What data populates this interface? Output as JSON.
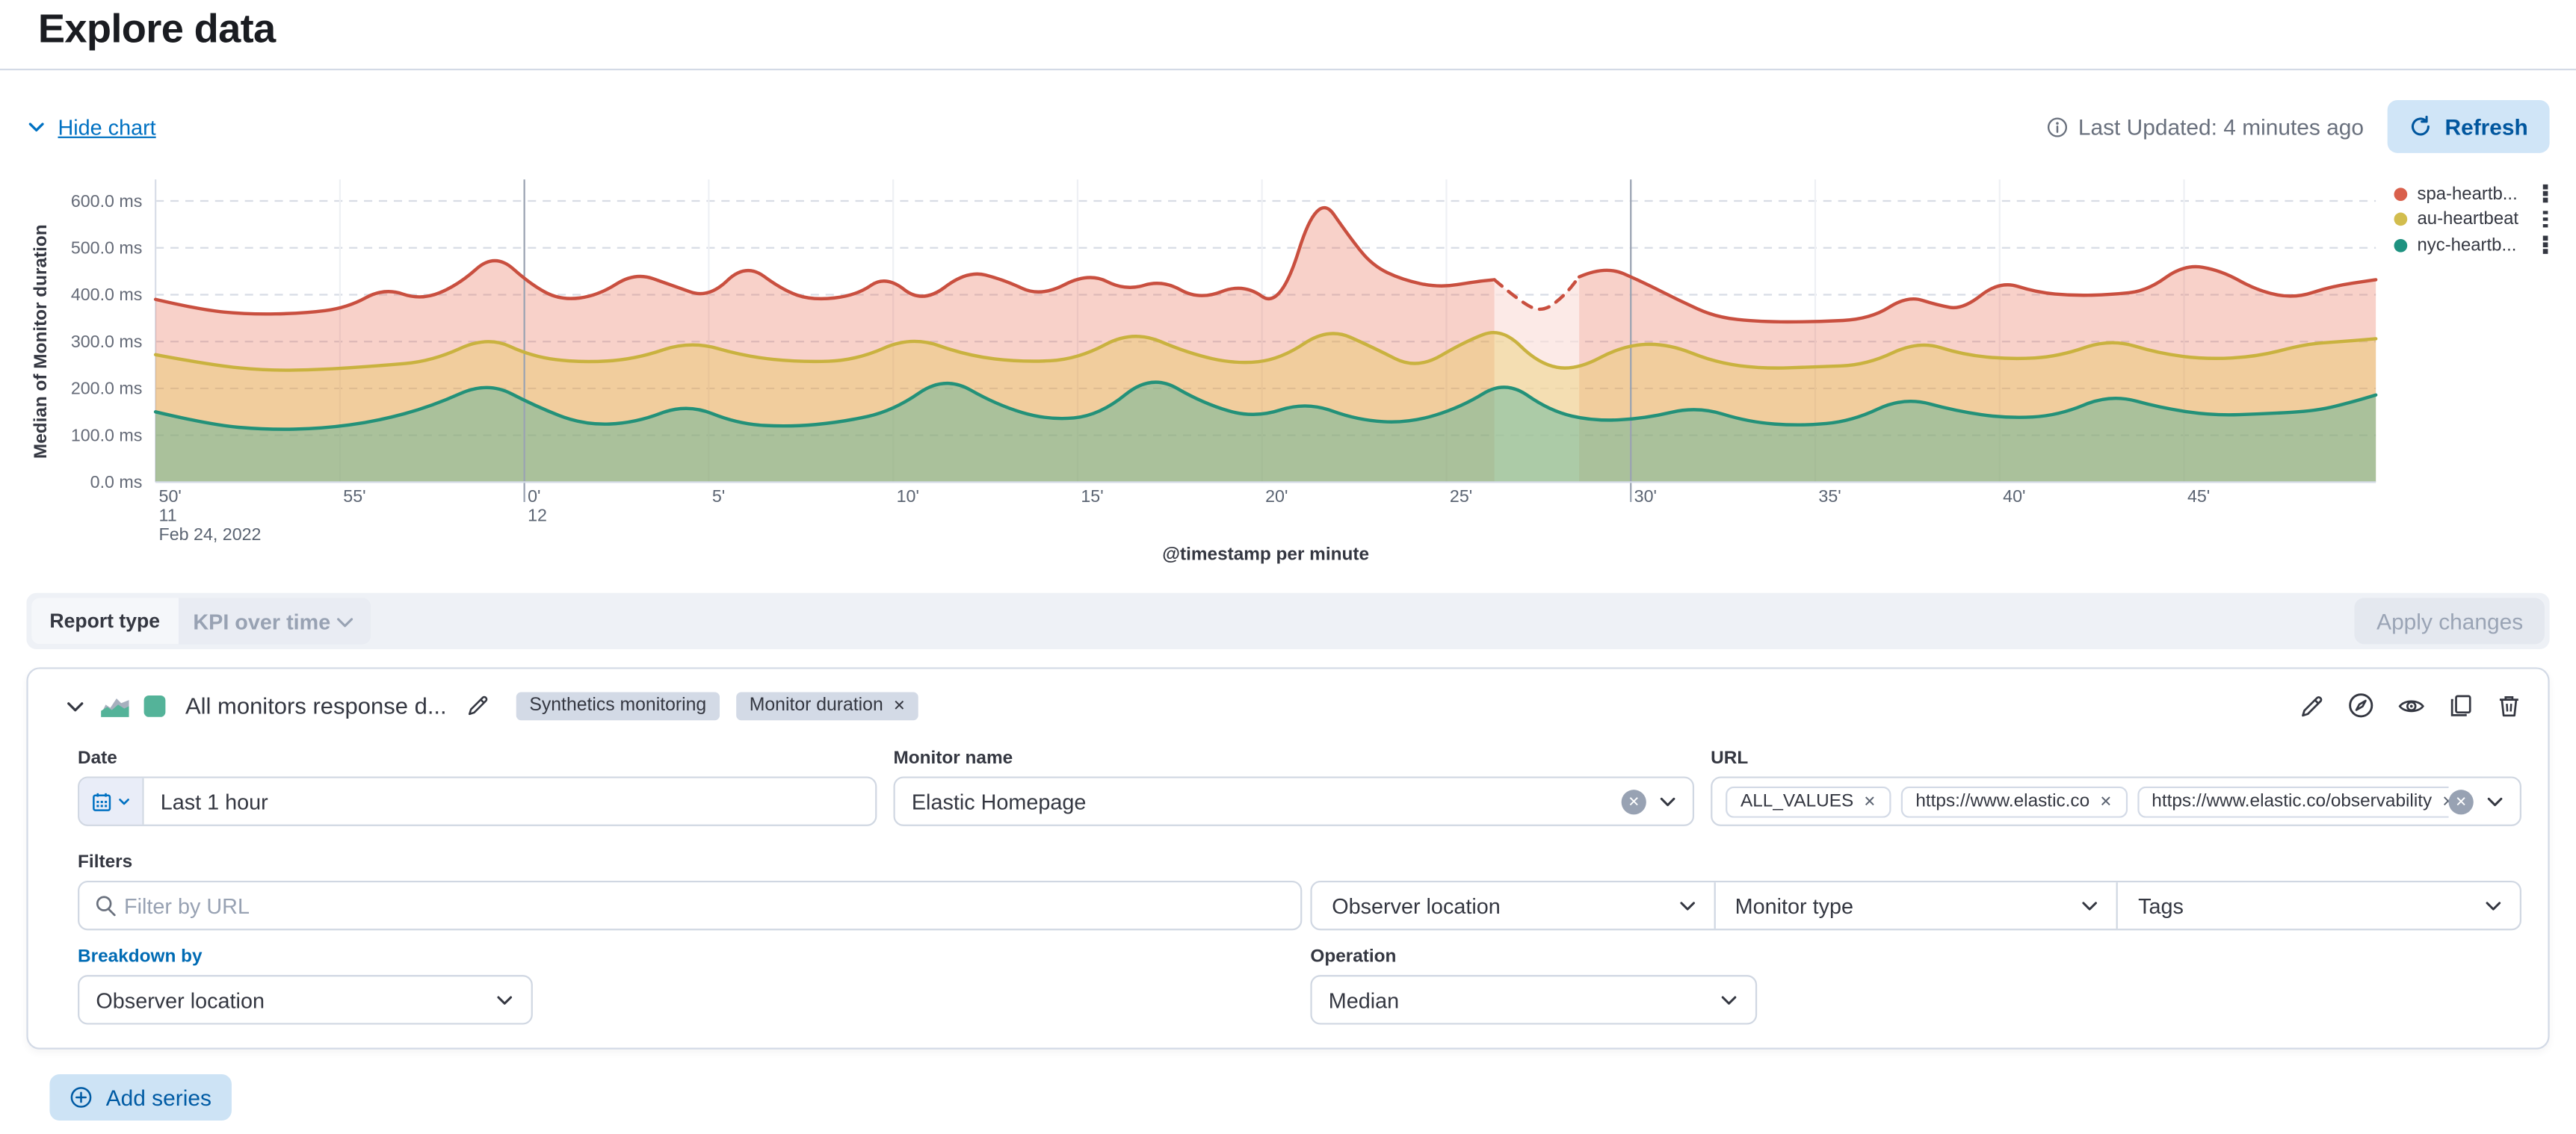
{
  "page": {
    "title": "Explore data"
  },
  "colors": {
    "accent_blue": "#0071C2",
    "link_blue": "#006BB4"
  },
  "toolbar": {
    "hide_chart": "Hide chart",
    "last_updated": "Last Updated: 4 minutes ago",
    "refresh": "Refresh"
  },
  "report_type": {
    "label": "Report type",
    "value": "KPI over time"
  },
  "apply_changes": "Apply changes",
  "series_panel": {
    "title": "All monitors response d...",
    "swatch_color": "#54B399",
    "badges": [
      {
        "label": "Synthetics monitoring",
        "removable": false
      },
      {
        "label": "Monitor duration",
        "removable": true
      }
    ],
    "fields": {
      "date": {
        "label": "Date",
        "value": "Last 1 hour"
      },
      "monitor_name": {
        "label": "Monitor name",
        "value": "Elastic Homepage"
      },
      "url": {
        "label": "URL",
        "values": [
          "ALL_VALUES",
          "https://www.elastic.co",
          "https://www.elastic.co/observability"
        ]
      }
    },
    "filters": {
      "label": "Filters",
      "placeholder": "Filter by URL",
      "dropdowns": [
        "Observer location",
        "Monitor type",
        "Tags"
      ]
    },
    "breakdown": {
      "label": "Breakdown by",
      "value": "Observer location"
    },
    "operation": {
      "label": "Operation",
      "value": "Median"
    }
  },
  "add_series": "Add series",
  "chart_data": {
    "type": "area",
    "title": "",
    "xlabel": "@timestamp per minute",
    "ylabel": "Median of Monitor duration",
    "ylim": [
      0,
      600
    ],
    "x_domain": [
      0,
      60.2
    ],
    "grid": "horizontal-dashed",
    "legend_position": "right",
    "y_ticks": [
      {
        "v": 0,
        "label": "0.0 ms"
      },
      {
        "v": 100,
        "label": "100.0 ms"
      },
      {
        "v": 200,
        "label": "200.0 ms"
      },
      {
        "v": 300,
        "label": "300.0 ms"
      },
      {
        "v": 400,
        "label": "400.0 ms"
      },
      {
        "v": 500,
        "label": "500.0 ms"
      },
      {
        "v": 600,
        "label": "600.0 ms"
      }
    ],
    "x_ticks": [
      {
        "t": 0,
        "label": "50'",
        "sub": "11",
        "sub2": "Feb 24, 2022"
      },
      {
        "t": 5,
        "label": "55'"
      },
      {
        "t": 10,
        "label": "0'",
        "sub": "12",
        "dark": true
      },
      {
        "t": 15,
        "label": "5'"
      },
      {
        "t": 20,
        "label": "10'"
      },
      {
        "t": 25,
        "label": "15'"
      },
      {
        "t": 30,
        "label": "20'"
      },
      {
        "t": 35,
        "label": "25'"
      },
      {
        "t": 40,
        "label": "30'",
        "dark": true
      },
      {
        "t": 45,
        "label": "35'"
      },
      {
        "t": 50,
        "label": "40'"
      },
      {
        "t": 55,
        "label": "45'"
      }
    ],
    "legend": [
      {
        "label": "spa-heartb...",
        "color": "#D9604C"
      },
      {
        "label": "au-heartbeat",
        "color": "#D2BD4E"
      },
      {
        "label": "nyc-heartb...",
        "color": "#1E9280"
      }
    ],
    "series": [
      {
        "name": "spa-heartbeat",
        "stroke": "#C94F3F",
        "fill": "#E7664C",
        "fill_opacity": 0.3,
        "gap_range": [
          36.3,
          38.6
        ],
        "points": [
          [
            0,
            390
          ],
          [
            1.2,
            368
          ],
          [
            2.5,
            358
          ],
          [
            4,
            360
          ],
          [
            5.2,
            372
          ],
          [
            6.2,
            415
          ],
          [
            7.2,
            388
          ],
          [
            8.2,
            420
          ],
          [
            9.2,
            490
          ],
          [
            10.2,
            420
          ],
          [
            11,
            388
          ],
          [
            12,
            398
          ],
          [
            13,
            448
          ],
          [
            14,
            420
          ],
          [
            15,
            392
          ],
          [
            16,
            468
          ],
          [
            17,
            410
          ],
          [
            17.8,
            388
          ],
          [
            19,
            398
          ],
          [
            19.8,
            442
          ],
          [
            20.8,
            380
          ],
          [
            22,
            452
          ],
          [
            23,
            432
          ],
          [
            24,
            395
          ],
          [
            25.3,
            448
          ],
          [
            26.3,
            408
          ],
          [
            27.3,
            432
          ],
          [
            28.3,
            388
          ],
          [
            29.5,
            425
          ],
          [
            30.5,
            368
          ],
          [
            31.5,
            622
          ],
          [
            32.4,
            520
          ],
          [
            33,
            462
          ],
          [
            33.8,
            432
          ],
          [
            34.8,
            415
          ],
          [
            35.8,
            428
          ],
          [
            36.3,
            432
          ],
          [
            37,
            385
          ],
          [
            37.6,
            362
          ],
          [
            38.2,
            398
          ],
          [
            38.6,
            438
          ],
          [
            39.3,
            462
          ],
          [
            40.3,
            428
          ],
          [
            41.3,
            388
          ],
          [
            42.3,
            352
          ],
          [
            43.5,
            342
          ],
          [
            45,
            342
          ],
          [
            46.5,
            348
          ],
          [
            47.5,
            398
          ],
          [
            48.3,
            378
          ],
          [
            49,
            368
          ],
          [
            50,
            430
          ],
          [
            51,
            405
          ],
          [
            52,
            398
          ],
          [
            53,
            400
          ],
          [
            54,
            408
          ],
          [
            55,
            465
          ],
          [
            56,
            452
          ],
          [
            57,
            408
          ],
          [
            58,
            392
          ],
          [
            59,
            418
          ],
          [
            60.2,
            432
          ]
        ]
      },
      {
        "name": "au-heartbeat",
        "stroke": "#C9B23F",
        "fill": "#E3C441",
        "fill_opacity": 0.32,
        "points": [
          [
            0,
            272
          ],
          [
            1.5,
            250
          ],
          [
            3,
            238
          ],
          [
            4.5,
            240
          ],
          [
            6,
            248
          ],
          [
            7.5,
            258
          ],
          [
            9,
            312
          ],
          [
            10.2,
            268
          ],
          [
            11.5,
            255
          ],
          [
            13,
            262
          ],
          [
            14.5,
            302
          ],
          [
            16,
            268
          ],
          [
            17.5,
            256
          ],
          [
            19,
            260
          ],
          [
            20.5,
            312
          ],
          [
            22,
            270
          ],
          [
            23.5,
            256
          ],
          [
            25,
            262
          ],
          [
            26.5,
            325
          ],
          [
            28,
            275
          ],
          [
            29.3,
            252
          ],
          [
            30.5,
            262
          ],
          [
            31.8,
            330
          ],
          [
            33,
            288
          ],
          [
            34.2,
            240
          ],
          [
            35.5,
            300
          ],
          [
            36.5,
            330
          ],
          [
            37.5,
            252
          ],
          [
            38.5,
            238
          ],
          [
            39.8,
            292
          ],
          [
            41,
            296
          ],
          [
            42.3,
            255
          ],
          [
            43.6,
            242
          ],
          [
            45,
            246
          ],
          [
            46.4,
            250
          ],
          [
            47.8,
            302
          ],
          [
            49,
            272
          ],
          [
            50.3,
            262
          ],
          [
            51.6,
            268
          ],
          [
            53,
            306
          ],
          [
            54.3,
            275
          ],
          [
            55.6,
            262
          ],
          [
            57,
            268
          ],
          [
            58.3,
            295
          ],
          [
            59.3,
            300
          ],
          [
            60.2,
            306
          ]
        ]
      },
      {
        "name": "nyc-heartbeat",
        "stroke": "#239179",
        "fill": "#54B399",
        "fill_opacity": 0.45,
        "points": [
          [
            0,
            150
          ],
          [
            1.5,
            122
          ],
          [
            3,
            112
          ],
          [
            4.5,
            114
          ],
          [
            6,
            130
          ],
          [
            7.5,
            162
          ],
          [
            9,
            215
          ],
          [
            10.3,
            162
          ],
          [
            11.6,
            122
          ],
          [
            13,
            126
          ],
          [
            14.4,
            168
          ],
          [
            15.8,
            124
          ],
          [
            17.2,
            118
          ],
          [
            18.6,
            128
          ],
          [
            20,
            152
          ],
          [
            21.4,
            228
          ],
          [
            22.8,
            165
          ],
          [
            24.2,
            132
          ],
          [
            25.6,
            142
          ],
          [
            27,
            232
          ],
          [
            28.4,
            168
          ],
          [
            29.8,
            136
          ],
          [
            31.2,
            172
          ],
          [
            32.6,
            132
          ],
          [
            34,
            126
          ],
          [
            35.4,
            160
          ],
          [
            36.6,
            218
          ],
          [
            37.8,
            152
          ],
          [
            39,
            130
          ],
          [
            40.4,
            136
          ],
          [
            41.8,
            162
          ],
          [
            43.2,
            128
          ],
          [
            44.6,
            120
          ],
          [
            46,
            130
          ],
          [
            47.4,
            182
          ],
          [
            48.8,
            152
          ],
          [
            50.2,
            136
          ],
          [
            51.6,
            142
          ],
          [
            53,
            188
          ],
          [
            54.4,
            158
          ],
          [
            55.8,
            142
          ],
          [
            57.2,
            146
          ],
          [
            58.6,
            152
          ],
          [
            59.6,
            172
          ],
          [
            60.2,
            186
          ]
        ]
      }
    ]
  }
}
